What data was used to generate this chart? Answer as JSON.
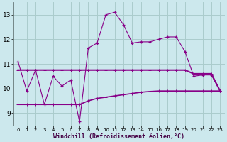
{
  "xlabel": "Windchill (Refroidissement éolien,°C)",
  "background_color": "#cce8ed",
  "grid_color": "#aacccc",
  "line_color": "#880088",
  "ylim": [
    8.5,
    13.5
  ],
  "xlim": [
    -0.5,
    23.5
  ],
  "yticks": [
    9,
    10,
    11,
    12,
    13
  ],
  "xticks": [
    0,
    1,
    2,
    3,
    4,
    5,
    6,
    7,
    8,
    9,
    10,
    11,
    12,
    13,
    14,
    15,
    16,
    17,
    18,
    19,
    20,
    21,
    22,
    23
  ],
  "line1_x": [
    0,
    1,
    2,
    3,
    4,
    5,
    6,
    7,
    8,
    9,
    10,
    11,
    12,
    13,
    14,
    15,
    16,
    17,
    18,
    19,
    20,
    21,
    22,
    23
  ],
  "line1_y": [
    11.1,
    9.9,
    10.75,
    9.35,
    10.5,
    10.1,
    10.35,
    8.65,
    11.65,
    11.85,
    13.0,
    13.1,
    12.6,
    11.85,
    11.9,
    11.9,
    12.0,
    12.1,
    12.1,
    11.5,
    10.5,
    10.55,
    10.55,
    9.9
  ],
  "line2_x": [
    0,
    1,
    2,
    3,
    4,
    5,
    6,
    7,
    8,
    9,
    10,
    11,
    12,
    13,
    14,
    15,
    16,
    17,
    18,
    19,
    20,
    21,
    22,
    23
  ],
  "line2_y": [
    10.75,
    10.75,
    10.75,
    10.75,
    10.75,
    10.75,
    10.75,
    10.75,
    10.75,
    10.75,
    10.75,
    10.75,
    10.75,
    10.75,
    10.75,
    10.75,
    10.75,
    10.75,
    10.75,
    10.75,
    10.6,
    10.6,
    10.6,
    9.9
  ],
  "line3_x": [
    0,
    1,
    2,
    3,
    4,
    5,
    6,
    7,
    8,
    9,
    10,
    11,
    12,
    13,
    14,
    15,
    16,
    17,
    18,
    19,
    20,
    21,
    22,
    23
  ],
  "line3_y": [
    9.35,
    9.35,
    9.35,
    9.35,
    9.35,
    9.35,
    9.35,
    9.35,
    9.5,
    9.6,
    9.65,
    9.7,
    9.75,
    9.8,
    9.85,
    9.88,
    9.9,
    9.9,
    9.9,
    9.9,
    9.9,
    9.9,
    9.9,
    9.9
  ]
}
